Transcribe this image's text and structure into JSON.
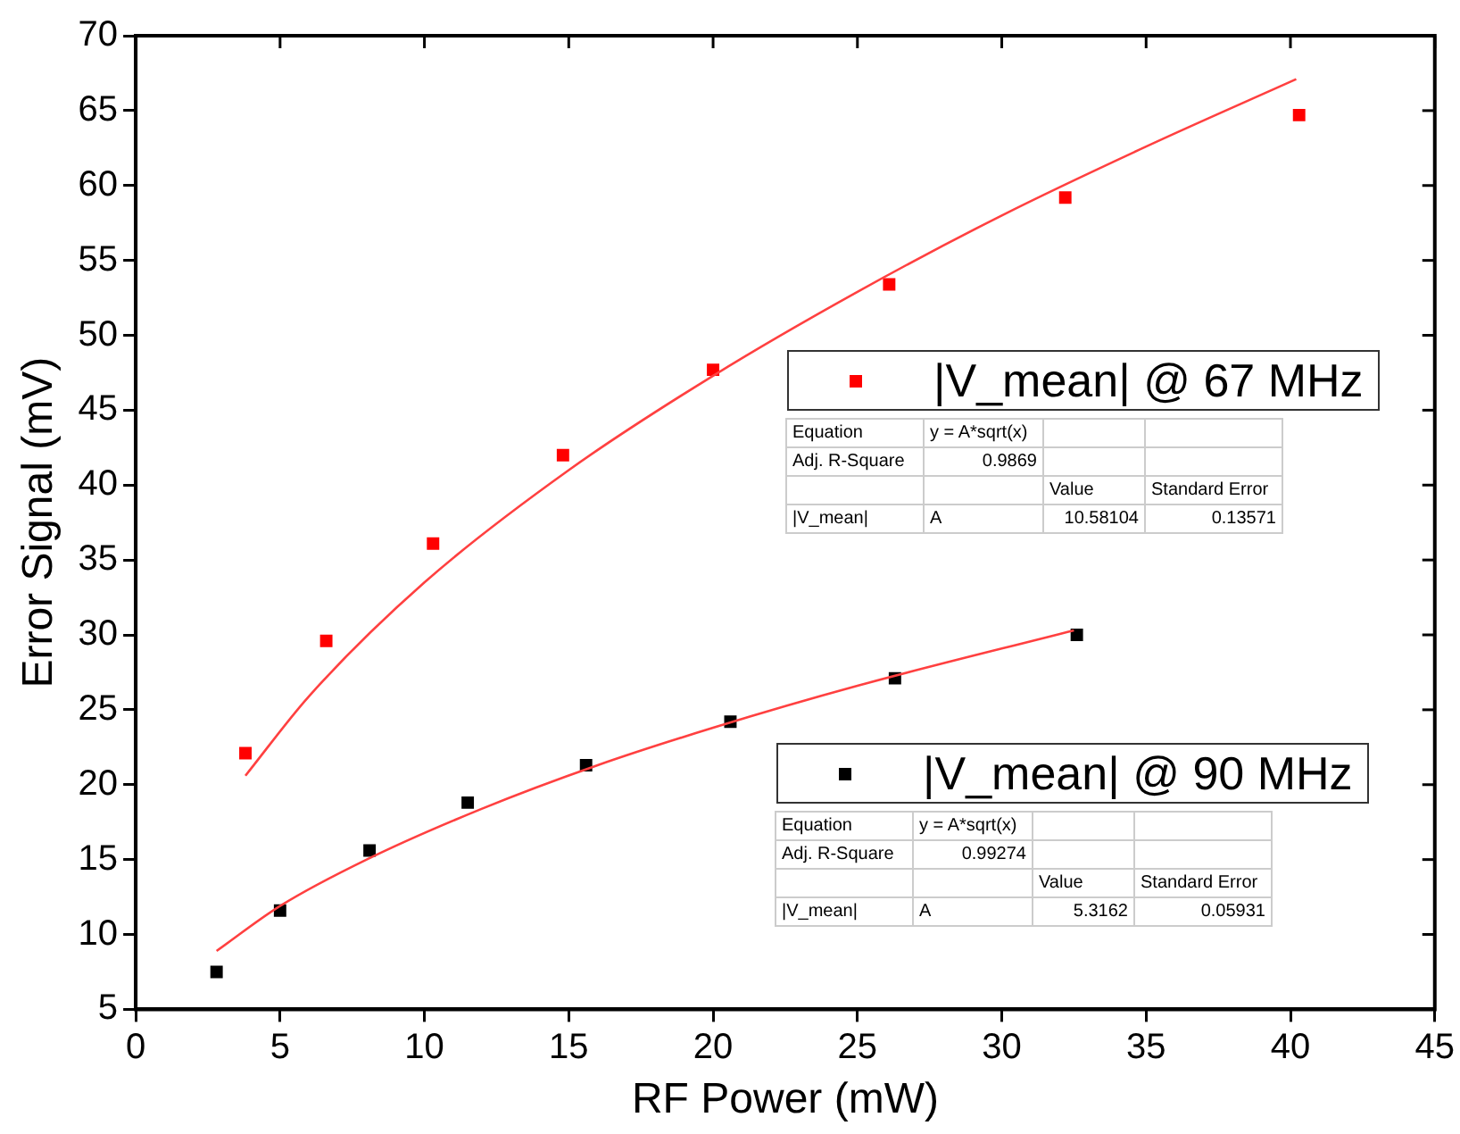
{
  "chart_data": {
    "type": "scatter",
    "xlabel": "RF Power (mW)",
    "ylabel": "Error Signal (mV)",
    "xlim": [
      0,
      45
    ],
    "xticks": [
      0,
      5,
      10,
      15,
      20,
      25,
      30,
      35,
      40,
      45
    ],
    "ylim": [
      5,
      70
    ],
    "yticks": [
      5,
      10,
      15,
      20,
      25,
      30,
      35,
      40,
      45,
      50,
      55,
      60,
      65,
      70
    ],
    "grid": false,
    "legend": "right",
    "series": [
      {
        "name": "|V_mean| @ 67 MHz",
        "marker": "square",
        "color": "#ff0000",
        "x": [
          3.8,
          6.6,
          10.3,
          14.8,
          20.0,
          26.1,
          32.2,
          40.3
        ],
        "values": [
          22.1,
          29.6,
          36.1,
          42.0,
          47.7,
          53.4,
          59.2,
          64.7
        ]
      },
      {
        "name": "|V_mean| @ 90 MHz",
        "marker": "square",
        "color": "#000000",
        "x": [
          2.8,
          5.0,
          8.1,
          11.5,
          15.6,
          20.6,
          26.3,
          32.6
        ],
        "values": [
          7.5,
          11.6,
          15.6,
          18.8,
          21.3,
          24.2,
          27.1,
          30.0
        ]
      },
      {
        "type": "line",
        "marker": "none",
        "color": "#ff4040",
        "x": [
          3.8,
          6,
          10,
          15,
          20,
          25,
          30,
          35,
          40.2
        ],
        "values": [
          20.6,
          25.9,
          33.5,
          41.0,
          47.3,
          52.9,
          58.0,
          62.6,
          67.1
        ]
      },
      {
        "type": "line",
        "marker": "none",
        "color": "#ff4040",
        "x": [
          2.8,
          5,
          8,
          12,
          16,
          20,
          25,
          32.5
        ],
        "values": [
          8.9,
          11.9,
          15.0,
          18.4,
          21.3,
          23.8,
          26.6,
          30.3
        ]
      }
    ],
    "annotations": [
      "Equation\ty = A*sqrt(x)\t\t",
      "Adj. R-Square\t0.9869\t\t",
      "\t\tValue\tStandard Error",
      "|V_mean|\tA\t10.58104\t0.13571",
      "Equation\ty = A*sqrt(x)\t\t",
      "Adj. R-Square\t0.99274\t\t",
      "\t\tValue\tStandard Error",
      "|V_mean|\tA\t5.3162\t0.05931"
    ]
  }
}
